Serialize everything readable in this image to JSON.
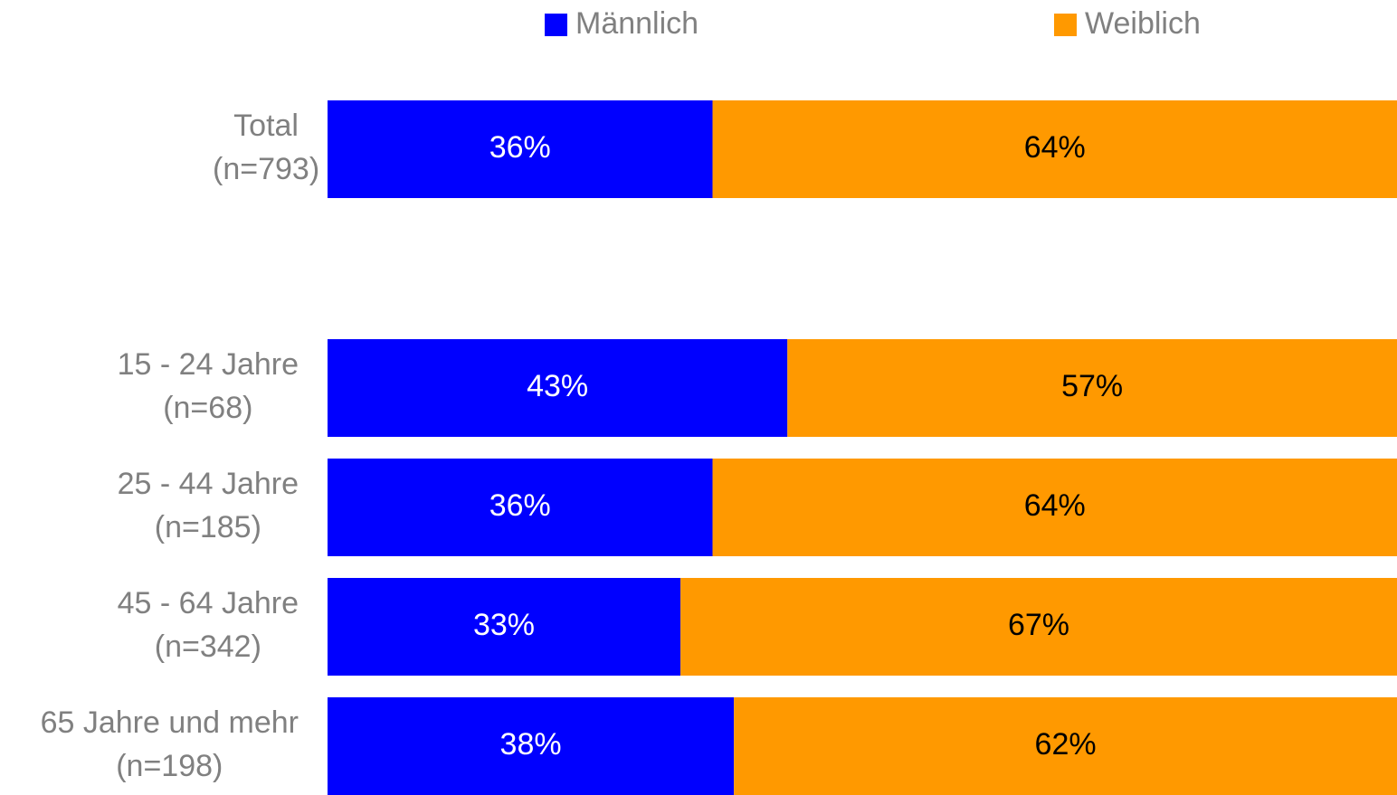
{
  "chart_data": {
    "type": "stacked_bar_horizontal",
    "categories": [
      [
        "Total",
        "(n=793)"
      ],
      null,
      [
        "15 - 24 Jahre",
        "(n=68)"
      ],
      [
        "25 - 44 Jahre",
        "(n=185)"
      ],
      [
        "45 - 64 Jahre",
        "(n=342)"
      ],
      [
        "65 Jahre und mehr",
        "(n=198)"
      ]
    ],
    "series": [
      {
        "name": "Männlich",
        "color": "#0000ff",
        "label_color": "#ffffff",
        "values": [
          36,
          null,
          43,
          36,
          33,
          38
        ],
        "value_labels": [
          "36%",
          null,
          "43%",
          "36%",
          "33%",
          "38%"
        ]
      },
      {
        "name": "Weiblich",
        "color": "#ff9900",
        "label_color": "#000000",
        "values": [
          64,
          null,
          57,
          64,
          67,
          62
        ],
        "value_labels": [
          "64%",
          null,
          "57%",
          "64%",
          "67%",
          "62%"
        ]
      }
    ],
    "xlim": [
      0,
      100
    ],
    "legend": "top"
  }
}
